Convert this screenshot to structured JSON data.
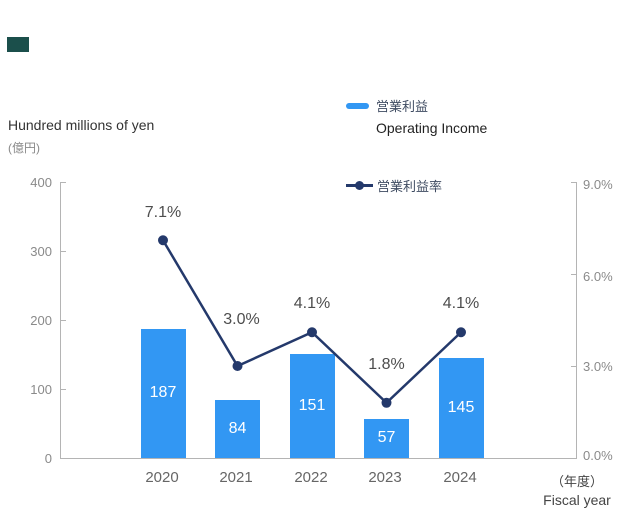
{
  "decor": {
    "corner_accent_color": "#1B4F4B"
  },
  "axis_left_title_en": "Hundred millions of yen",
  "axis_left_title_jp": "(億円)",
  "legend": {
    "bar": {
      "label_jp": "営業利益",
      "label_en": "Operating Income",
      "color": "#3297F3"
    },
    "line": {
      "label_jp": "営業利益率",
      "color": "#24396B"
    }
  },
  "axis_left": {
    "ticks": [
      "400",
      "300",
      "200",
      "100",
      "0"
    ]
  },
  "axis_right": {
    "ticks": [
      "9.0%",
      "6.0%",
      "3.0%",
      "0.0%"
    ]
  },
  "x_axis": {
    "unit_jp": "（年度）",
    "unit_en": "Fiscal year"
  },
  "chart_data": {
    "type": "bar+line",
    "title": "",
    "categories": [
      "2020",
      "2021",
      "2022",
      "2023",
      "2024"
    ],
    "series": [
      {
        "name": "営業利益 Operating Income",
        "type": "bar",
        "axis": "left",
        "values": [
          187,
          84,
          151,
          57,
          145
        ],
        "value_labels": [
          "187",
          "84",
          "151",
          "57",
          "145"
        ],
        "color": "#3297F3"
      },
      {
        "name": "営業利益率",
        "type": "line",
        "axis": "right",
        "values": [
          7.1,
          3.0,
          4.1,
          1.8,
          4.1
        ],
        "point_labels": [
          "7.1%",
          "3.0%",
          "4.1%",
          "1.8%",
          "4.1%"
        ],
        "color": "#24396B"
      }
    ],
    "left_axis": {
      "label": "Hundred millions of yen (億円)",
      "range": [
        0,
        400
      ],
      "ticks": [
        0,
        100,
        200,
        300,
        400
      ]
    },
    "right_axis": {
      "range_percent": [
        0,
        9
      ],
      "ticks_percent": [
        0.0,
        3.0,
        6.0,
        9.0
      ]
    },
    "xlabel": "（年度） Fiscal year",
    "grid": false,
    "legend_position": "top-right"
  }
}
